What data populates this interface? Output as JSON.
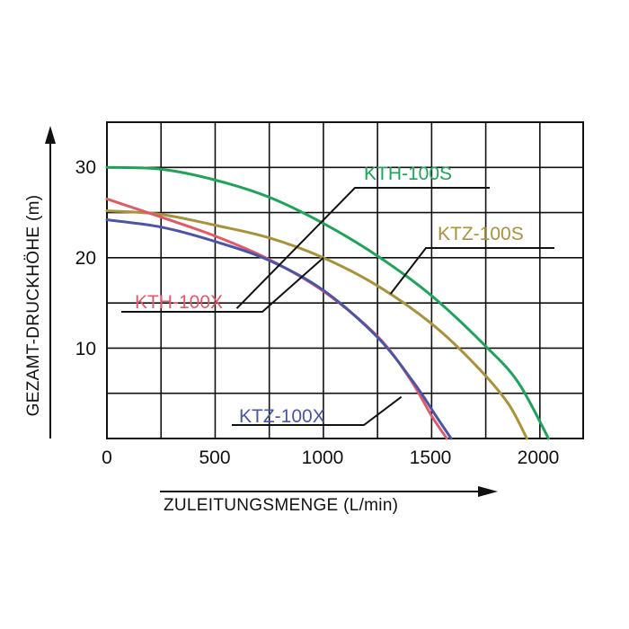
{
  "chart_data": {
    "type": "line",
    "title": "",
    "xlabel": "ZULEITUNGSMENGE (L/min)",
    "ylabel": "GEZAMT-DRUCKHÖHE (m)",
    "xlim": [
      0,
      2200
    ],
    "ylim": [
      0,
      35
    ],
    "x_ticks": [
      "0",
      "500",
      "1000",
      "1500",
      "2000"
    ],
    "y_ticks": [
      "10",
      "20",
      "30"
    ],
    "grid": true,
    "series": [
      {
        "name": "KTH-100S",
        "color": "#1fa35a",
        "points": [
          [
            0,
            30
          ],
          [
            250,
            29.8
          ],
          [
            500,
            28.6
          ],
          [
            750,
            26.7
          ],
          [
            1000,
            23.8
          ],
          [
            1250,
            20.2
          ],
          [
            1500,
            15.8
          ],
          [
            1750,
            10.2
          ],
          [
            1900,
            6.2
          ],
          [
            2040,
            0
          ]
        ]
      },
      {
        "name": "KTZ-100S",
        "color": "#a8933a",
        "points": [
          [
            0,
            25.2
          ],
          [
            250,
            24.8
          ],
          [
            500,
            23.6
          ],
          [
            750,
            22.2
          ],
          [
            1000,
            20
          ],
          [
            1250,
            16.9
          ],
          [
            1500,
            12.7
          ],
          [
            1700,
            8.2
          ],
          [
            1850,
            4
          ],
          [
            1940,
            0
          ]
        ]
      },
      {
        "name": "KTH-100X",
        "color": "#e05a6a",
        "points": [
          [
            0,
            26.5
          ],
          [
            250,
            24.5
          ],
          [
            500,
            22.4
          ],
          [
            750,
            19.8
          ],
          [
            1000,
            16.3
          ],
          [
            1250,
            11.3
          ],
          [
            1400,
            6.6
          ],
          [
            1500,
            2.5
          ],
          [
            1570,
            0
          ]
        ]
      },
      {
        "name": "KTZ-100X",
        "color": "#4a55a8",
        "points": [
          [
            0,
            24.2
          ],
          [
            250,
            23.4
          ],
          [
            500,
            21.8
          ],
          [
            750,
            19.7
          ],
          [
            1000,
            16.4
          ],
          [
            1250,
            11.2
          ],
          [
            1420,
            6.1
          ],
          [
            1520,
            2.5
          ],
          [
            1590,
            0
          ]
        ]
      }
    ]
  }
}
